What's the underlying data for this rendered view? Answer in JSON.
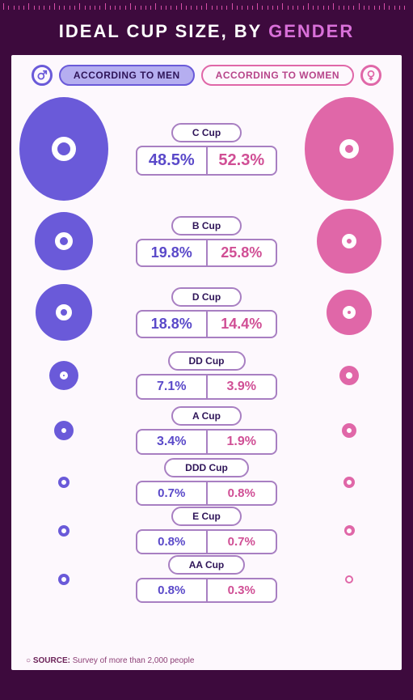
{
  "title": {
    "prefix": "IDEAL CUP SIZE, BY ",
    "accent": "GENDER"
  },
  "legend": {
    "men": "ACCORDING TO MEN",
    "women": "ACCORDING TO WOMEN"
  },
  "colors": {
    "men": "#6a5ad9",
    "women": "#e067a8",
    "panel_bg": "#fdf8fd",
    "outer_bg": "#3d0a3d",
    "border": "#a87fc2"
  },
  "rows": [
    {
      "label": "C Cup",
      "men_pct": "48.5%",
      "women_pct": "52.3%",
      "men_d": 128,
      "women_d": 128,
      "ring": 30,
      "pct_fs": 20,
      "h": 136
    },
    {
      "label": "B Cup",
      "men_pct": "19.8%",
      "women_pct": "25.8%",
      "men_d": 72,
      "women_d": 80,
      "ring": 22,
      "pct_fs": 18,
      "h": 92
    },
    {
      "label": "D Cup",
      "men_pct": "18.8%",
      "women_pct": "14.4%",
      "men_d": 70,
      "women_d": 56,
      "ring": 20,
      "pct_fs": 18,
      "h": 84
    },
    {
      "label": "DD Cup",
      "men_pct": "7.1%",
      "women_pct": "3.9%",
      "men_d": 36,
      "women_d": 24,
      "ring": 10,
      "pct_fs": 16,
      "h": 68
    },
    {
      "label": "A Cup",
      "men_pct": "3.4%",
      "women_pct": "1.9%",
      "men_d": 24,
      "women_d": 18,
      "ring": 6,
      "pct_fs": 16,
      "h": 64
    },
    {
      "label": "DDD Cup",
      "men_pct": "0.7%",
      "women_pct": "0.8%",
      "men_d": 14,
      "women_d": 14,
      "ring": 3,
      "pct_fs": 15,
      "h": 60
    },
    {
      "label": "E Cup",
      "men_pct": "0.8%",
      "women_pct": "0.7%",
      "men_d": 14,
      "women_d": 13,
      "ring": 3,
      "pct_fs": 15,
      "h": 60
    },
    {
      "label": "AA Cup",
      "men_pct": "0.8%",
      "women_pct": "0.3%",
      "men_d": 14,
      "women_d": 10,
      "ring": 3,
      "pct_fs": 15,
      "h": 60
    }
  ],
  "source": {
    "label": "SOURCE:",
    "text": "Survey of more than 2,000 people"
  }
}
